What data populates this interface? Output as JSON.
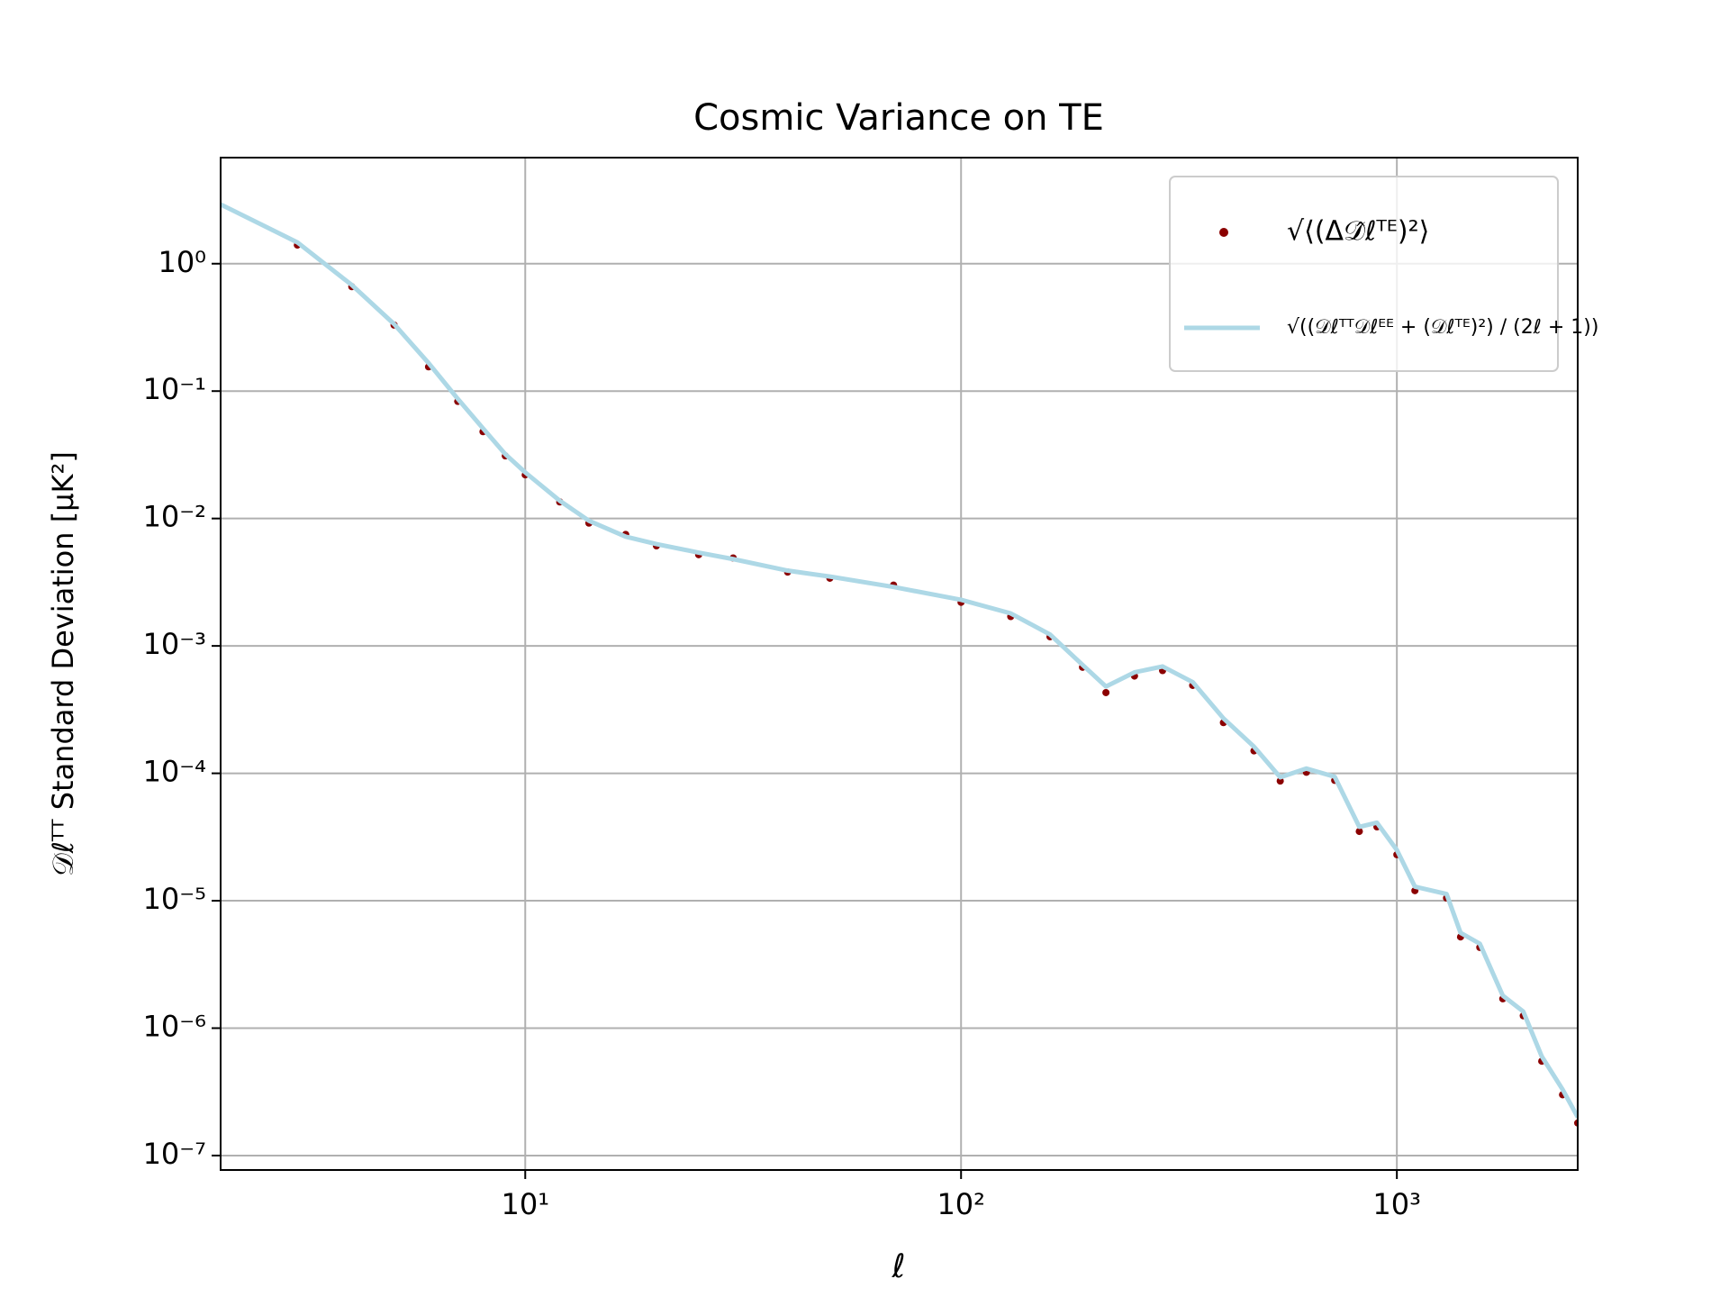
{
  "chart_data": {
    "type": "line",
    "title": "Cosmic Variance on TE",
    "xlabel": "ℓ",
    "ylabel": "𝒟ℓᵀᵀ Standard Deviation [μK²]",
    "xscale": "log",
    "yscale": "log",
    "grid": true,
    "legend": "upper right",
    "xlim": [
      2,
      2600
    ],
    "ylim": [
      7.7e-08,
      6.8
    ],
    "xticks": [
      {
        "value": 10,
        "label": "10¹"
      },
      {
        "value": 100,
        "label": "10²"
      },
      {
        "value": 1000,
        "label": "10³"
      }
    ],
    "yticks": [
      {
        "value": 1,
        "label": "10⁰"
      },
      {
        "value": 0.1,
        "label": "10⁻¹"
      },
      {
        "value": 0.01,
        "label": "10⁻²"
      },
      {
        "value": 0.001,
        "label": "10⁻³"
      },
      {
        "value": 0.0001,
        "label": "10⁻⁴"
      },
      {
        "value": 1e-05,
        "label": "10⁻⁵"
      },
      {
        "value": 1e-06,
        "label": "10⁻⁶"
      },
      {
        "value": 1e-07,
        "label": "10⁻⁷"
      }
    ],
    "x": [
      2,
      3,
      4,
      5,
      6,
      7,
      8,
      9,
      10,
      12,
      14,
      17,
      20,
      25,
      30,
      40,
      50,
      70,
      100,
      130,
      160,
      190,
      215,
      250,
      290,
      340,
      400,
      470,
      540,
      620,
      720,
      820,
      900,
      1000,
      1100,
      1300,
      1400,
      1550,
      1750,
      1950,
      2150,
      2400,
      2600
    ],
    "series": [
      {
        "name": "√⟨(Δ𝒟̂ℓᵀᴱ)²⟩",
        "style": "scatter",
        "color": "#8b0000",
        "values": [
          null,
          1.4,
          0.66,
          0.33,
          0.155,
          0.083,
          0.048,
          0.031,
          0.022,
          0.0135,
          0.0092,
          0.0075,
          0.0061,
          0.0052,
          0.0049,
          0.0038,
          0.0034,
          0.003,
          0.0022,
          0.0017,
          0.00118,
          0.00068,
          0.00043,
          0.00058,
          0.00064,
          0.00049,
          0.00025,
          0.00015,
          8.7e-05,
          0.000102,
          8.8e-05,
          3.5e-05,
          3.8e-05,
          2.3e-05,
          1.2e-05,
          1.05e-05,
          5.2e-06,
          4.3e-06,
          1.7e-06,
          1.25e-06,
          5.5e-07,
          3e-07,
          1.8e-07
        ]
      },
      {
        "name": "√((𝒟ℓᵀᵀ𝒟ℓᴱᴱ + (𝒟ℓᵀᴱ)²) / (2ℓ + 1))",
        "style": "line",
        "color": "#add8e6",
        "values": [
          2.92,
          1.47,
          0.68,
          0.336,
          0.166,
          0.087,
          0.051,
          0.032,
          0.023,
          0.0138,
          0.0096,
          0.0072,
          0.0063,
          0.0054,
          0.0048,
          0.0039,
          0.0035,
          0.0029,
          0.0023,
          0.0018,
          0.00123,
          0.00071,
          0.00048,
          0.00062,
          0.00069,
          0.00052,
          0.00027,
          0.000162,
          9.3e-05,
          0.000109,
          9.4e-05,
          3.8e-05,
          4.1e-05,
          2.5e-05,
          1.29e-05,
          1.13e-05,
          5.6e-06,
          4.6e-06,
          1.8e-06,
          1.35e-06,
          6e-07,
          3.3e-07,
          2e-07
        ]
      }
    ]
  }
}
